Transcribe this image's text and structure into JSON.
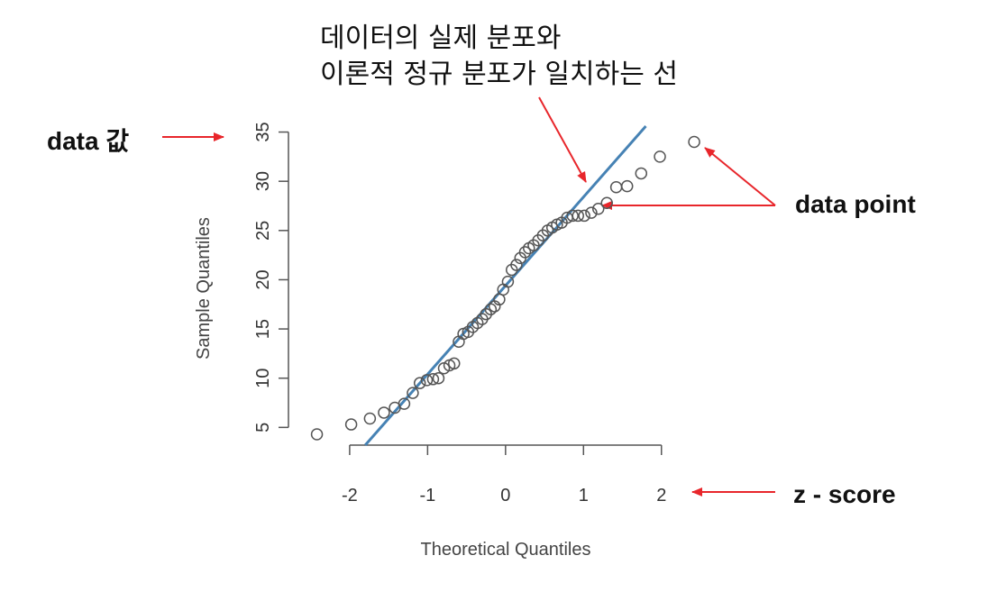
{
  "chart_data": {
    "type": "scatter",
    "xlabel": "Theoretical Quantiles",
    "ylabel": "Sample Quantiles",
    "x": [
      -2.42,
      -1.98,
      -1.74,
      -1.56,
      -1.42,
      -1.3,
      -1.19,
      -1.1,
      -1.01,
      -0.93,
      -0.86,
      -0.79,
      -0.72,
      -0.66,
      -0.6,
      -0.54,
      -0.48,
      -0.42,
      -0.36,
      -0.3,
      -0.25,
      -0.19,
      -0.14,
      -0.08,
      -0.03,
      0.03,
      0.08,
      0.14,
      0.19,
      0.25,
      0.3,
      0.36,
      0.42,
      0.48,
      0.54,
      0.6,
      0.66,
      0.72,
      0.79,
      0.86,
      0.93,
      1.01,
      1.1,
      1.19,
      1.3,
      1.42,
      1.56,
      1.74,
      1.98,
      2.42
    ],
    "values": [
      4.3,
      5.3,
      5.9,
      6.5,
      7.0,
      7.4,
      8.5,
      9.5,
      9.8,
      9.9,
      10.0,
      11.0,
      11.3,
      11.5,
      13.7,
      14.5,
      14.7,
      15.2,
      15.6,
      16.0,
      16.5,
      17.0,
      17.3,
      18.0,
      19.0,
      19.8,
      21.0,
      21.5,
      22.2,
      22.8,
      23.2,
      23.5,
      24.0,
      24.5,
      25.0,
      25.3,
      25.6,
      25.8,
      26.3,
      26.5,
      26.5,
      26.5,
      26.8,
      27.2,
      27.8,
      29.4,
      29.5,
      30.8,
      32.5,
      34.0
    ],
    "color": "#555555",
    "reference_line": {
      "intercept": 19.4,
      "slope": 9.0,
      "color": "#4682b4"
    },
    "xlim": [
      -2.6,
      2.5
    ],
    "xticks": [
      -2,
      -1,
      0,
      1,
      2
    ],
    "ylim": [
      3.2,
      35.6
    ],
    "yticks": [
      5,
      10,
      15,
      20,
      25,
      30,
      35
    ],
    "annotations": [
      "데이터의 실제 분포와",
      "이론적 정규 분포가 일치하는 선",
      "data 값",
      "data point",
      "z - score"
    ]
  }
}
